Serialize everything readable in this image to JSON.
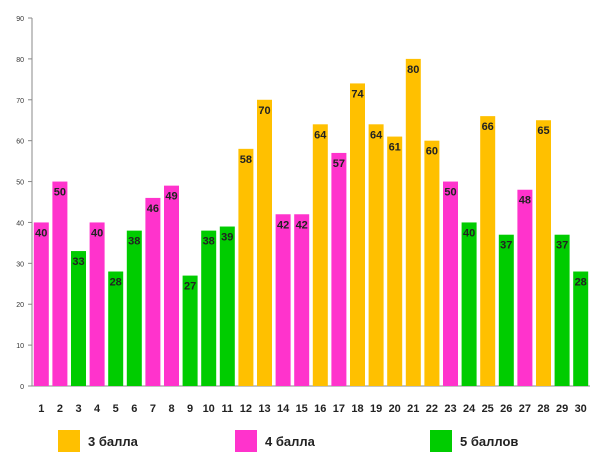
{
  "chart_data": {
    "type": "bar",
    "categories": [
      "1",
      "2",
      "3",
      "4",
      "5",
      "6",
      "7",
      "8",
      "9",
      "10",
      "11",
      "12",
      "13",
      "14",
      "15",
      "16",
      "17",
      "18",
      "19",
      "20",
      "21",
      "22",
      "23",
      "24",
      "25",
      "26",
      "27",
      "28",
      "29",
      "30"
    ],
    "values": [
      40,
      50,
      33,
      40,
      28,
      38,
      46,
      49,
      27,
      38,
      39,
      58,
      70,
      42,
      42,
      64,
      57,
      74,
      64,
      61,
      80,
      60,
      50,
      40,
      66,
      37,
      48,
      65,
      37,
      28
    ],
    "groups": [
      2,
      2,
      3,
      2,
      3,
      3,
      2,
      2,
      3,
      3,
      3,
      1,
      1,
      2,
      2,
      1,
      2,
      1,
      1,
      1,
      1,
      1,
      2,
      3,
      1,
      3,
      2,
      1,
      3,
      3
    ],
    "series": [
      {
        "name": "3 балла",
        "color": "#FFC000"
      },
      {
        "name": "4 балла",
        "color": "#FF33CC"
      },
      {
        "name": "5 баллов",
        "color": "#00CC00"
      }
    ],
    "yticks": [
      0,
      10,
      20,
      30,
      40,
      50,
      60,
      70,
      80,
      90
    ],
    "ylim": [
      0,
      90
    ],
    "grid": false,
    "legend_position": "bottom"
  }
}
